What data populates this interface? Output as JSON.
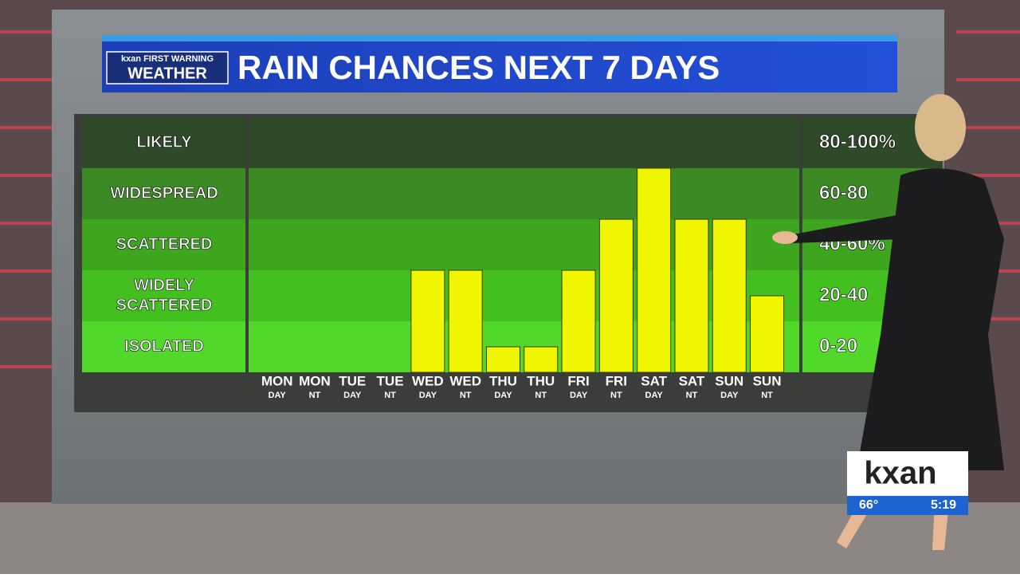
{
  "chart_data": {
    "type": "bar",
    "title": "RAIN CHANCES NEXT 7 DAYS",
    "categories": [
      {
        "day": "MON",
        "part": "DAY"
      },
      {
        "day": "MON",
        "part": "NT"
      },
      {
        "day": "TUE",
        "part": "DAY"
      },
      {
        "day": "TUE",
        "part": "NT"
      },
      {
        "day": "WED",
        "part": "DAY"
      },
      {
        "day": "WED",
        "part": "NT"
      },
      {
        "day": "THU",
        "part": "DAY"
      },
      {
        "day": "THU",
        "part": "NT"
      },
      {
        "day": "FRI",
        "part": "DAY"
      },
      {
        "day": "FRI",
        "part": "NT"
      },
      {
        "day": "SAT",
        "part": "DAY"
      },
      {
        "day": "SAT",
        "part": "NT"
      },
      {
        "day": "SUN",
        "part": "DAY"
      },
      {
        "day": "SUN",
        "part": "NT"
      }
    ],
    "values": [
      0,
      0,
      0,
      0,
      40,
      40,
      10,
      10,
      40,
      60,
      80,
      60,
      60,
      30
    ],
    "color": "#f0f500",
    "ylim": [
      0,
      100
    ],
    "bands": [
      {
        "name": [
          "LIKELY"
        ],
        "range": "80-100%",
        "from": 80,
        "to": 100,
        "color": "#2f4a28"
      },
      {
        "name": [
          "WIDESPREAD"
        ],
        "range": "60-80",
        "from": 60,
        "to": 80,
        "color": "#3c8a24"
      },
      {
        "name": [
          "SCATTERED"
        ],
        "range": "40-60%",
        "from": 40,
        "to": 60,
        "color": "#3ea61e"
      },
      {
        "name": [
          "WIDELY",
          "SCATTERED"
        ],
        "range": "20-40",
        "from": 20,
        "to": 40,
        "color": "#43bf20"
      },
      {
        "name": [
          "ISOLATED"
        ],
        "range": "0-20",
        "from": 0,
        "to": 20,
        "color": "#52d82a"
      }
    ]
  },
  "branding": {
    "logo_top": "kxan FIRST WARNING",
    "logo_bottom": "WEATHER",
    "station": "kxan",
    "temperature": "66°",
    "time": "5:19"
  }
}
